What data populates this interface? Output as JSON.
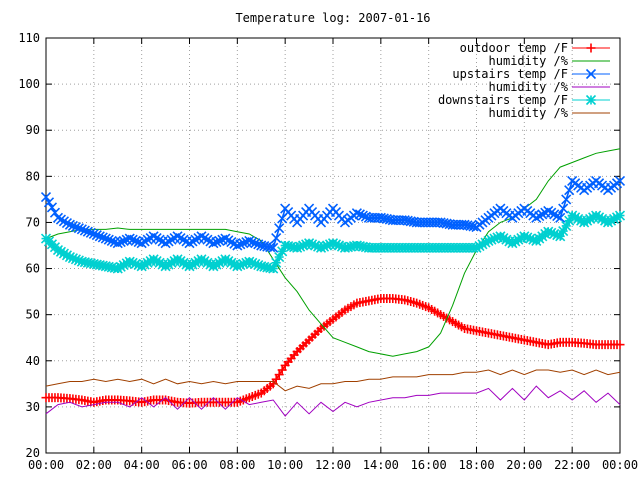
{
  "chart_data": {
    "type": "line",
    "title": "Temperature log: 2007-01-16",
    "xlabel": "",
    "ylabel": "",
    "xlim": [
      0,
      24
    ],
    "ylim": [
      20,
      110
    ],
    "grid": true,
    "legend_position": "top-right",
    "x_ticks": [
      {
        "value": 0,
        "label": "00:00"
      },
      {
        "value": 2,
        "label": "02:00"
      },
      {
        "value": 4,
        "label": "04:00"
      },
      {
        "value": 6,
        "label": "06:00"
      },
      {
        "value": 8,
        "label": "08:00"
      },
      {
        "value": 10,
        "label": "10:00"
      },
      {
        "value": 12,
        "label": "12:00"
      },
      {
        "value": 14,
        "label": "14:00"
      },
      {
        "value": 16,
        "label": "16:00"
      },
      {
        "value": 18,
        "label": "18:00"
      },
      {
        "value": 20,
        "label": "20:00"
      },
      {
        "value": 22,
        "label": "22:00"
      },
      {
        "value": 24,
        "label": "00:00"
      }
    ],
    "y_ticks": [
      {
        "value": 20,
        "label": "20"
      },
      {
        "value": 30,
        "label": "30"
      },
      {
        "value": 40,
        "label": "40"
      },
      {
        "value": 50,
        "label": "50"
      },
      {
        "value": 60,
        "label": "60"
      },
      {
        "value": 70,
        "label": "70"
      },
      {
        "value": 80,
        "label": "80"
      },
      {
        "value": 90,
        "label": "90"
      },
      {
        "value": 100,
        "label": "100"
      },
      {
        "value": 110,
        "label": "110"
      }
    ],
    "series": [
      {
        "name": "outdoor temp /F",
        "color": "#ff0000",
        "marker": "plus",
        "x": [
          0,
          0.5,
          1,
          1.5,
          2,
          2.5,
          3,
          3.5,
          4,
          4.5,
          5,
          5.5,
          6,
          6.5,
          7,
          7.5,
          8,
          8.5,
          9,
          9.5,
          10,
          10.5,
          11,
          11.5,
          12,
          12.5,
          13,
          13.5,
          14,
          14.5,
          15,
          15.5,
          16,
          16.5,
          17,
          17.5,
          18,
          18.5,
          19,
          19.5,
          20,
          20.5,
          21,
          21.5,
          22,
          22.5,
          23,
          23.5,
          24
        ],
        "y": [
          32,
          32,
          31.8,
          31.5,
          31,
          31.5,
          31.5,
          31.3,
          31,
          31.5,
          31.5,
          31,
          30.8,
          31,
          31,
          31,
          31,
          32,
          33,
          35,
          39,
          42,
          44.5,
          47,
          49,
          51,
          52.5,
          53,
          53.5,
          53.5,
          53.2,
          52.5,
          51.5,
          50,
          48.5,
          47,
          46.5,
          46,
          45.5,
          45,
          44.5,
          44,
          43.5,
          44,
          44,
          43.8,
          43.5,
          43.5,
          43.5
        ]
      },
      {
        "name": "humidity /%",
        "color": "#00a000",
        "marker": "none",
        "x": [
          0,
          0.5,
          1,
          1.5,
          2,
          2.5,
          3,
          3.5,
          4,
          4.5,
          5,
          5.5,
          6,
          6.5,
          7,
          7.5,
          8,
          8.5,
          9,
          9.5,
          10,
          10.5,
          11,
          11.5,
          12,
          12.5,
          13,
          13.5,
          14,
          14.5,
          15,
          15.5,
          16,
          16.5,
          17,
          17.5,
          18,
          18.5,
          19,
          19.5,
          20,
          20.5,
          21,
          21.5,
          22,
          22.5,
          23,
          23.5,
          24
        ],
        "y": [
          66.5,
          67.5,
          68,
          68.5,
          68.5,
          68.5,
          68.8,
          68.5,
          68.5,
          68.5,
          68.5,
          68.5,
          68.5,
          68.5,
          68.5,
          68.5,
          68,
          67.5,
          66,
          62,
          58,
          55,
          51,
          48,
          45,
          44,
          43,
          42,
          41.5,
          41,
          41.5,
          42,
          43,
          46,
          52,
          59,
          64,
          68,
          70,
          71,
          73,
          75,
          79,
          82,
          83,
          84,
          85,
          85.5,
          86
        ]
      },
      {
        "name": "upstairs temp /F",
        "color": "#0060ff",
        "marker": "cross",
        "x": [
          0,
          0.5,
          1,
          1.5,
          2,
          2.5,
          3,
          3.5,
          4,
          4.5,
          5,
          5.5,
          6,
          6.5,
          7,
          7.5,
          8,
          8.5,
          9,
          9.5,
          10,
          10.5,
          11,
          11.5,
          12,
          12.5,
          13,
          13.5,
          14,
          14.5,
          15,
          15.5,
          16,
          16.5,
          17,
          17.5,
          18,
          18.5,
          19,
          19.5,
          20,
          20.5,
          21,
          21.5,
          22,
          22.5,
          23,
          23.5,
          24
        ],
        "y": [
          75.5,
          71,
          69.5,
          68.5,
          67.5,
          66.5,
          65.5,
          66.5,
          65.5,
          67,
          65.5,
          67,
          65.5,
          67,
          65.5,
          66.5,
          65,
          66,
          65,
          64.5,
          73,
          70,
          73,
          70,
          73,
          70,
          72,
          71,
          71,
          70.5,
          70.5,
          70,
          70,
          70,
          69.5,
          69.5,
          69,
          71,
          73,
          71,
          73,
          71,
          72.5,
          71,
          79,
          77,
          79,
          77,
          79
        ]
      },
      {
        "name": "humidity /%",
        "color": "#a000c0",
        "marker": "none",
        "x": [
          0,
          0.5,
          1,
          1.5,
          2,
          2.5,
          3,
          3.5,
          4,
          4.5,
          5,
          5.5,
          6,
          6.5,
          7,
          7.5,
          8,
          8.5,
          9,
          9.5,
          10,
          10.5,
          11,
          11.5,
          12,
          12.5,
          13,
          13.5,
          14,
          14.5,
          15,
          15.5,
          16,
          16.5,
          17,
          17.5,
          18,
          18.5,
          19,
          19.5,
          20,
          20.5,
          21,
          21.5,
          22,
          22.5,
          23,
          23.5,
          24
        ],
        "y": [
          28.5,
          30.5,
          31,
          30,
          30.5,
          31,
          31,
          30,
          32,
          30,
          32,
          29.5,
          32,
          29.5,
          32,
          29.5,
          32,
          30.5,
          31,
          31.5,
          28,
          31,
          28.5,
          31,
          29,
          31,
          30,
          31,
          31.5,
          32,
          32,
          32.5,
          32.5,
          33,
          33,
          33,
          33,
          34,
          31.5,
          34,
          31.5,
          34.5,
          32,
          33.5,
          31.5,
          33.5,
          31,
          33,
          30.5
        ]
      },
      {
        "name": "downstairs temp /F",
        "color": "#00d0d0",
        "marker": "star",
        "x": [
          0,
          0.5,
          1,
          1.5,
          2,
          2.5,
          3,
          3.5,
          4,
          4.5,
          5,
          5.5,
          6,
          6.5,
          7,
          7.5,
          8,
          8.5,
          9,
          9.5,
          10,
          10.5,
          11,
          11.5,
          12,
          12.5,
          13,
          13.5,
          14,
          14.5,
          15,
          15.5,
          16,
          16.5,
          17,
          17.5,
          18,
          18.5,
          19,
          19.5,
          20,
          20.5,
          21,
          21.5,
          22,
          22.5,
          23,
          23.5,
          24
        ],
        "y": [
          66.5,
          64,
          62.5,
          61.5,
          61,
          60.5,
          60,
          61.5,
          60.5,
          62,
          60.5,
          62,
          60.5,
          62,
          60.5,
          62,
          60.5,
          61.5,
          60.5,
          60,
          65,
          64.5,
          65.5,
          64.5,
          65.5,
          64.5,
          65,
          64.5,
          64.5,
          64.5,
          64.5,
          64.5,
          64.5,
          64.5,
          64.5,
          64.5,
          64.5,
          66,
          67,
          65.5,
          67,
          66,
          68,
          67,
          71.5,
          70,
          71.5,
          70,
          71.5
        ]
      },
      {
        "name": "humidity /%",
        "color": "#a04000",
        "marker": "none",
        "x": [
          0,
          0.5,
          1,
          1.5,
          2,
          2.5,
          3,
          3.5,
          4,
          4.5,
          5,
          5.5,
          6,
          6.5,
          7,
          7.5,
          8,
          8.5,
          9,
          9.5,
          10,
          10.5,
          11,
          11.5,
          12,
          12.5,
          13,
          13.5,
          14,
          14.5,
          15,
          15.5,
          16,
          16.5,
          17,
          17.5,
          18,
          18.5,
          19,
          19.5,
          20,
          20.5,
          21,
          21.5,
          22,
          22.5,
          23,
          23.5,
          24
        ],
        "y": [
          34.5,
          35,
          35.5,
          35.5,
          36,
          35.5,
          36,
          35.5,
          36,
          35,
          36,
          35,
          35.5,
          35,
          35.5,
          35,
          35.5,
          35.5,
          35.5,
          35.5,
          33.5,
          34.5,
          34,
          35,
          35,
          35.5,
          35.5,
          36,
          36,
          36.5,
          36.5,
          36.5,
          37,
          37,
          37,
          37.5,
          37.5,
          38,
          37,
          38,
          37,
          38,
          38,
          37.5,
          38,
          37,
          38,
          37,
          37.5
        ]
      }
    ]
  }
}
